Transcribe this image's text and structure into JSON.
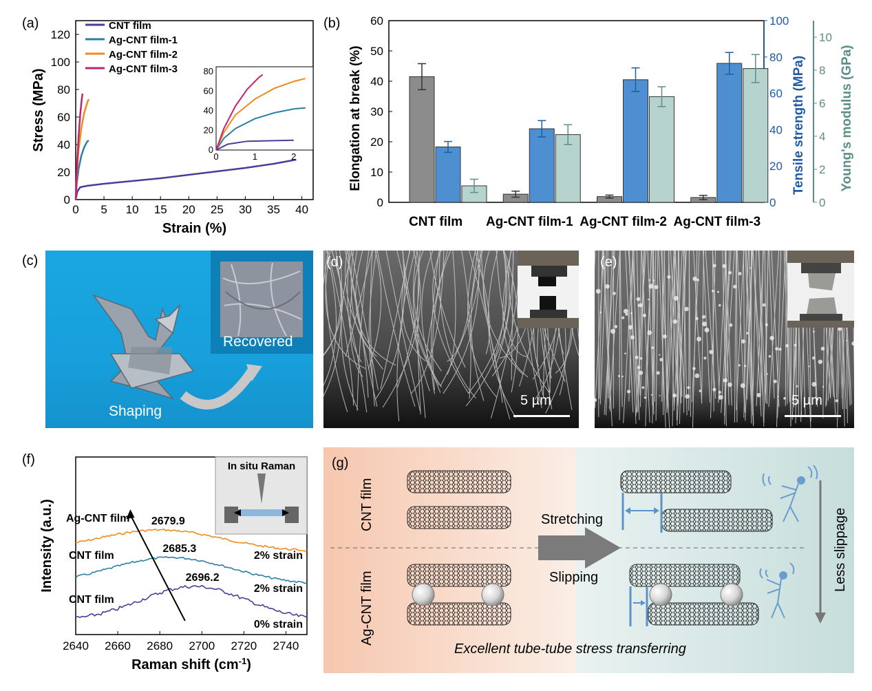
{
  "panels": {
    "a": "(a)",
    "b": "(b)",
    "c": "(c)",
    "d": "(d)",
    "e": "(e)",
    "f": "(f)",
    "g": "(g)"
  },
  "colors": {
    "cnt": "#4b3c9a",
    "ag1": "#2b7fa6",
    "ag2": "#f08a1c",
    "ag3": "#c2236e",
    "bar_gray": "#8c8c8c",
    "bar_blue": "#4d8fd0",
    "bar_teal": "#b7d3cd",
    "axis_blue": "#1f5aa6",
    "axis_teal": "#5b8f86"
  },
  "chart_data": [
    {
      "id": "a",
      "type": "line",
      "xlabel": "Strain (%)",
      "ylabel": "Stress (MPa)",
      "xlim": [
        0,
        42
      ],
      "ylim": [
        0,
        130
      ],
      "xticks": [
        0,
        5,
        10,
        15,
        20,
        25,
        30,
        35,
        40
      ],
      "yticks": [
        0,
        20,
        40,
        60,
        80,
        100,
        120
      ],
      "legend": [
        "CNT film",
        "Ag-CNT film-1",
        "Ag-CNT film-2",
        "Ag-CNT film-3"
      ],
      "legend_placement": "top-left",
      "series": [
        {
          "name": "CNT film",
          "x": [
            0,
            0.3,
            0.8,
            2,
            5,
            10,
            15,
            20,
            25,
            30,
            35,
            39
          ],
          "y": [
            0,
            6,
            9,
            10,
            11.5,
            13.5,
            15.5,
            18,
            20.5,
            23,
            26,
            29
          ]
        },
        {
          "name": "Ag-CNT film-1",
          "x": [
            0,
            0.2,
            0.5,
            1,
            1.5,
            2,
            2.3
          ],
          "y": [
            0,
            12,
            22,
            32,
            38,
            42,
            43
          ]
        },
        {
          "name": "Ag-CNT film-2",
          "x": [
            0,
            0.2,
            0.5,
            1,
            1.5,
            2,
            2.3
          ],
          "y": [
            0,
            18,
            36,
            52,
            63,
            70,
            73
          ]
        },
        {
          "name": "Ag-CNT film-3",
          "x": [
            0,
            0.2,
            0.5,
            0.8,
            1.1,
            1.2
          ],
          "y": [
            0,
            22,
            45,
            62,
            74,
            77
          ]
        }
      ],
      "inset": {
        "xlim": [
          0,
          2.5
        ],
        "ylim": [
          0,
          85
        ],
        "xticks": [
          0,
          1,
          2
        ],
        "yticks": [
          0,
          20,
          40,
          60,
          80
        ]
      }
    },
    {
      "id": "b",
      "type": "bar",
      "categories": [
        "CNT film",
        "Ag-CNT film-1",
        "Ag-CNT film-2",
        "Ag-CNT film-3"
      ],
      "ylabel_left": "Elongation at break (%)",
      "ylabel_right1": "Tensile strength (MPa)",
      "ylabel_right2": "Young's modulus (GPa)",
      "ylim_left": [
        0,
        60
      ],
      "ylim_right1": [
        0,
        100
      ],
      "ylim_right2": [
        0,
        11
      ],
      "yticks_left": [
        0,
        10,
        20,
        30,
        40,
        50,
        60
      ],
      "yticks_right1": [
        0,
        20,
        40,
        60,
        80,
        100
      ],
      "yticks_right2": [
        0,
        2,
        4,
        6,
        8,
        10
      ],
      "series": [
        {
          "name": "Elongation at break",
          "axis": "left",
          "values": [
            41.5,
            2.7,
            1.9,
            1.6
          ],
          "errors": [
            4.3,
            1.0,
            0.5,
            0.7
          ]
        },
        {
          "name": "Tensile strength",
          "axis": "right1",
          "values": [
            30.5,
            40.5,
            67.5,
            76.5
          ],
          "errors": [
            3.0,
            4.5,
            6.5,
            6.0
          ]
        },
        {
          "name": "Young's modulus",
          "axis": "right2",
          "values": [
            1.0,
            4.1,
            6.4,
            8.1
          ],
          "errors": [
            0.4,
            0.6,
            0.6,
            0.85
          ]
        }
      ]
    },
    {
      "id": "f",
      "type": "line",
      "xlabel": "Raman shift (cm⁻¹)",
      "xlabel_text": "Raman shift (cm",
      "xlabel_sup": "-1",
      "xlabel_close": ")",
      "ylabel": "Intensity (a.u.)",
      "xlim": [
        2640,
        2750
      ],
      "xticks": [
        2640,
        2660,
        2680,
        2700,
        2720,
        2740
      ],
      "series": [
        {
          "name": "Ag-CNT film",
          "strain": "2% strain",
          "peak": "2679.9",
          "peak_x": 2679.9
        },
        {
          "name": "CNT film",
          "strain": "2% strain",
          "peak": "2685.3",
          "peak_x": 2685.3
        },
        {
          "name": "CNT film",
          "strain": "0% strain",
          "peak": "2696.2",
          "peak_x": 2696.2
        }
      ],
      "inset_label": "In situ Raman"
    }
  ],
  "photo_c": {
    "recovered": "Recovered",
    "shaping": "Shaping"
  },
  "photo_d": {
    "scale": "5 µm"
  },
  "photo_e": {
    "scale": "5 µm"
  },
  "schematic_g": {
    "row1": "CNT film",
    "row2": "Ag-CNT film",
    "stretching": "Stretching",
    "slipping": "Slipping",
    "less_slippage": "Less slippage",
    "caption": "Excellent tube-tube stress transferring"
  }
}
